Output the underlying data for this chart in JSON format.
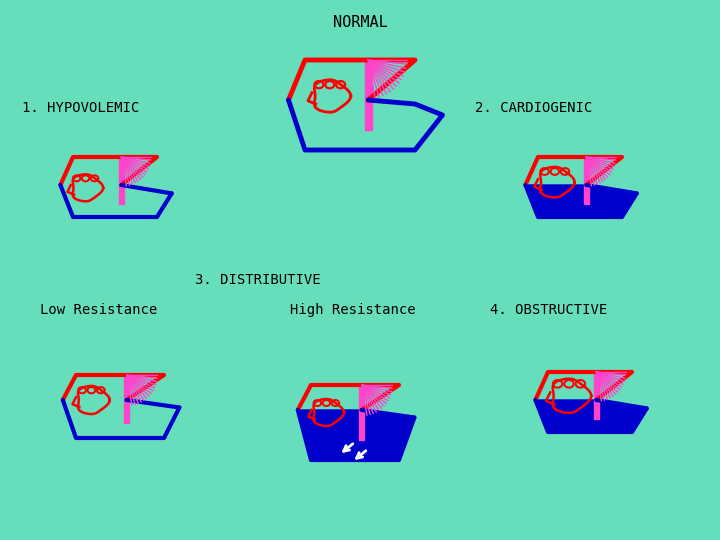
{
  "background_color": "#66DDBB",
  "title_normal": "NORMAL",
  "label_1": "1. HYPOVOLEMIC",
  "label_2": "2. CARDIOGENIC",
  "label_3": "3. DISTRIBUTIVE",
  "label_low": "Low Resistance",
  "label_high": "High Resistance",
  "label_4": "4. OBSTRUCTIVE",
  "red": "#FF0000",
  "blue": "#0000CC",
  "magenta": "#FF44CC",
  "white": "#FFFFFF",
  "font_size_title": 11,
  "font_size_label": 10
}
